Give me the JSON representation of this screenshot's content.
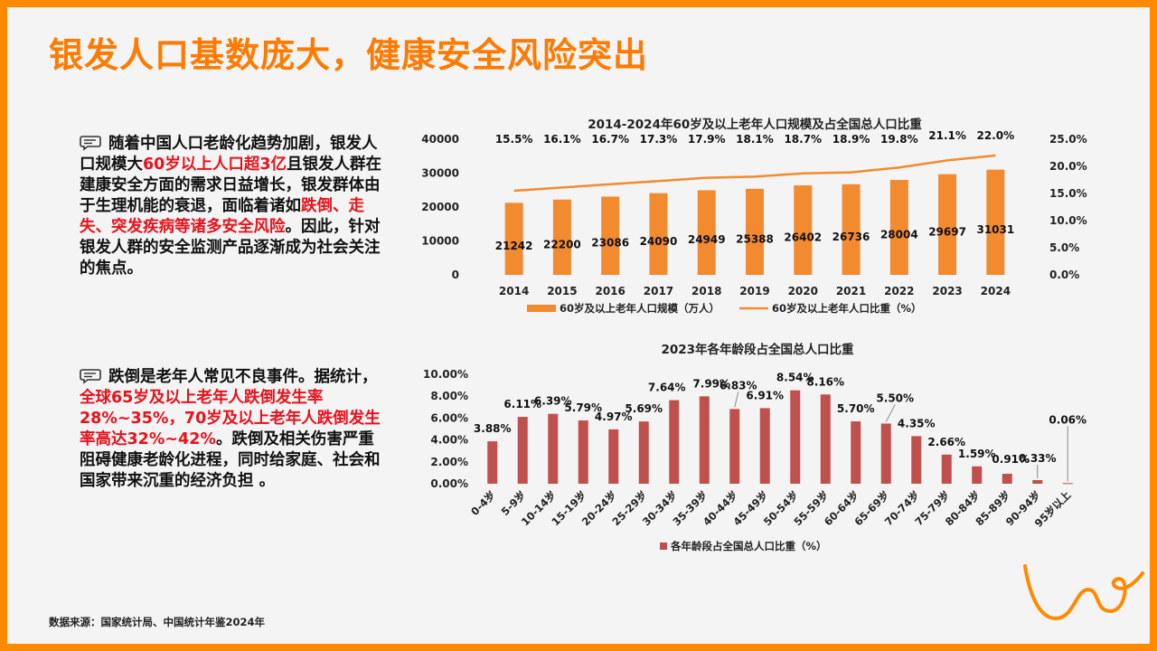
{
  "title": "银发人口基数庞大，健康安全风险突出",
  "paragraph1": {
    "t1": "随着中国人口老龄化趋势加剧，银发人口规模大",
    "h1": "60岁以上人口超3亿",
    "t2": "且银发人群在建康安全方面的需求日益增长，银发群体由于生理机能的衰退，面临着诸如",
    "h2": "跌倒、走失、突发疾病等诸多安全风险",
    "t3": "。因此，针对银发人群的安全监测产品逐渐成为社会关注的焦点。"
  },
  "paragraph2": {
    "t1": "跌倒是老年人常见不良事件。据统计，",
    "h1": "全球65岁及以上老年人跌倒发生率28%~35%，70岁及以上老年人跌倒发生率高达32%~42%",
    "t2": "。跌倒及相关伤害严重阻碍健康老龄化进程，同时给家庭、社会和国家带来沉重的经济负担 。"
  },
  "source": "数据来源：国家统计局、中国统计年鉴2024年",
  "icons": {
    "paragraph": "chat-bubble-icon",
    "decoration": "swirl-line-icon"
  },
  "colors": {
    "accent": "#ff7a00",
    "bar1": "#f28a30",
    "line1": "#f28a30",
    "bar2": "#c0504d",
    "highlight": "#e8111b"
  },
  "chart_data": [
    {
      "type": "bar",
      "title": "2014-2024年60岁及以上老年人口规模及占全国总人口比重",
      "categories": [
        "2014",
        "2015",
        "2016",
        "2017",
        "2018",
        "2019",
        "2020",
        "2021",
        "2022",
        "2023",
        "2024"
      ],
      "series": [
        {
          "name": "60岁及以上老年人口规模（万人）",
          "type": "bar",
          "axis": "left",
          "values": [
            21242,
            22200,
            23086,
            24090,
            24949,
            25388,
            26402,
            26736,
            28004,
            29697,
            31031
          ],
          "labels": [
            "21242",
            "22200",
            "23086",
            "24090",
            "24949",
            "25388",
            "26402",
            "26736",
            "28004",
            "29697",
            "31031"
          ]
        },
        {
          "name": "60岁及以上老年人口比重（%）",
          "type": "line",
          "axis": "right",
          "values": [
            15.5,
            16.1,
            16.7,
            17.3,
            17.9,
            18.1,
            18.7,
            18.9,
            19.8,
            21.1,
            22.0
          ],
          "labels": [
            "15.5%",
            "16.1%",
            "16.7%",
            "17.3%",
            "17.9%",
            "18.1%",
            "18.7%",
            "18.9%",
            "19.8%",
            "21.1%",
            "22.0%"
          ]
        }
      ],
      "ylim": [
        0,
        40000
      ],
      "yticks": [
        "0",
        "10000",
        "20000",
        "30000",
        "40000"
      ],
      "y2lim": [
        0,
        25
      ],
      "y2ticks": [
        "0.0%",
        "5.0%",
        "10.0%",
        "15.0%",
        "20.0%",
        "25.0%"
      ],
      "grid": false,
      "legend": "bottom"
    },
    {
      "type": "bar",
      "title": "2023年各年龄段占全国总人口比重",
      "categories": [
        "0-4岁",
        "5-9岁",
        "10-14岁",
        "15-19岁",
        "20-24岁",
        "25-29岁",
        "30-34岁",
        "35-39岁",
        "40-44岁",
        "45-49岁",
        "50-54岁",
        "55-59岁",
        "60-64岁",
        "65-69岁",
        "70-74岁",
        "75-79岁",
        "80-84岁",
        "85-89岁",
        "90-94岁",
        "95岁以上"
      ],
      "series": [
        {
          "name": "各年龄段占全国总人口比重（%）",
          "values": [
            3.88,
            6.11,
            6.39,
            5.79,
            4.97,
            5.69,
            7.64,
            7.99,
            6.83,
            6.91,
            8.54,
            8.16,
            5.7,
            5.5,
            4.35,
            2.66,
            1.59,
            0.91,
            0.33,
            0.06
          ],
          "labels": [
            "3.88%",
            "6.11%",
            "6.39%",
            "5.79%",
            "4.97%",
            "5.69%",
            "7.64%",
            "7.99%",
            "6.83%",
            "6.91%",
            "8.54%",
            "8.16%",
            "5.70%",
            "5.50%",
            "4.35%",
            "2.66%",
            "1.59%",
            "0.91%",
            "0.33%",
            "0.06%"
          ]
        }
      ],
      "ylim": [
        0,
        10
      ],
      "yticks": [
        "0.00%",
        "2.00%",
        "4.00%",
        "6.00%",
        "8.00%",
        "10.00%"
      ],
      "grid": false,
      "legend": "bottom"
    }
  ]
}
